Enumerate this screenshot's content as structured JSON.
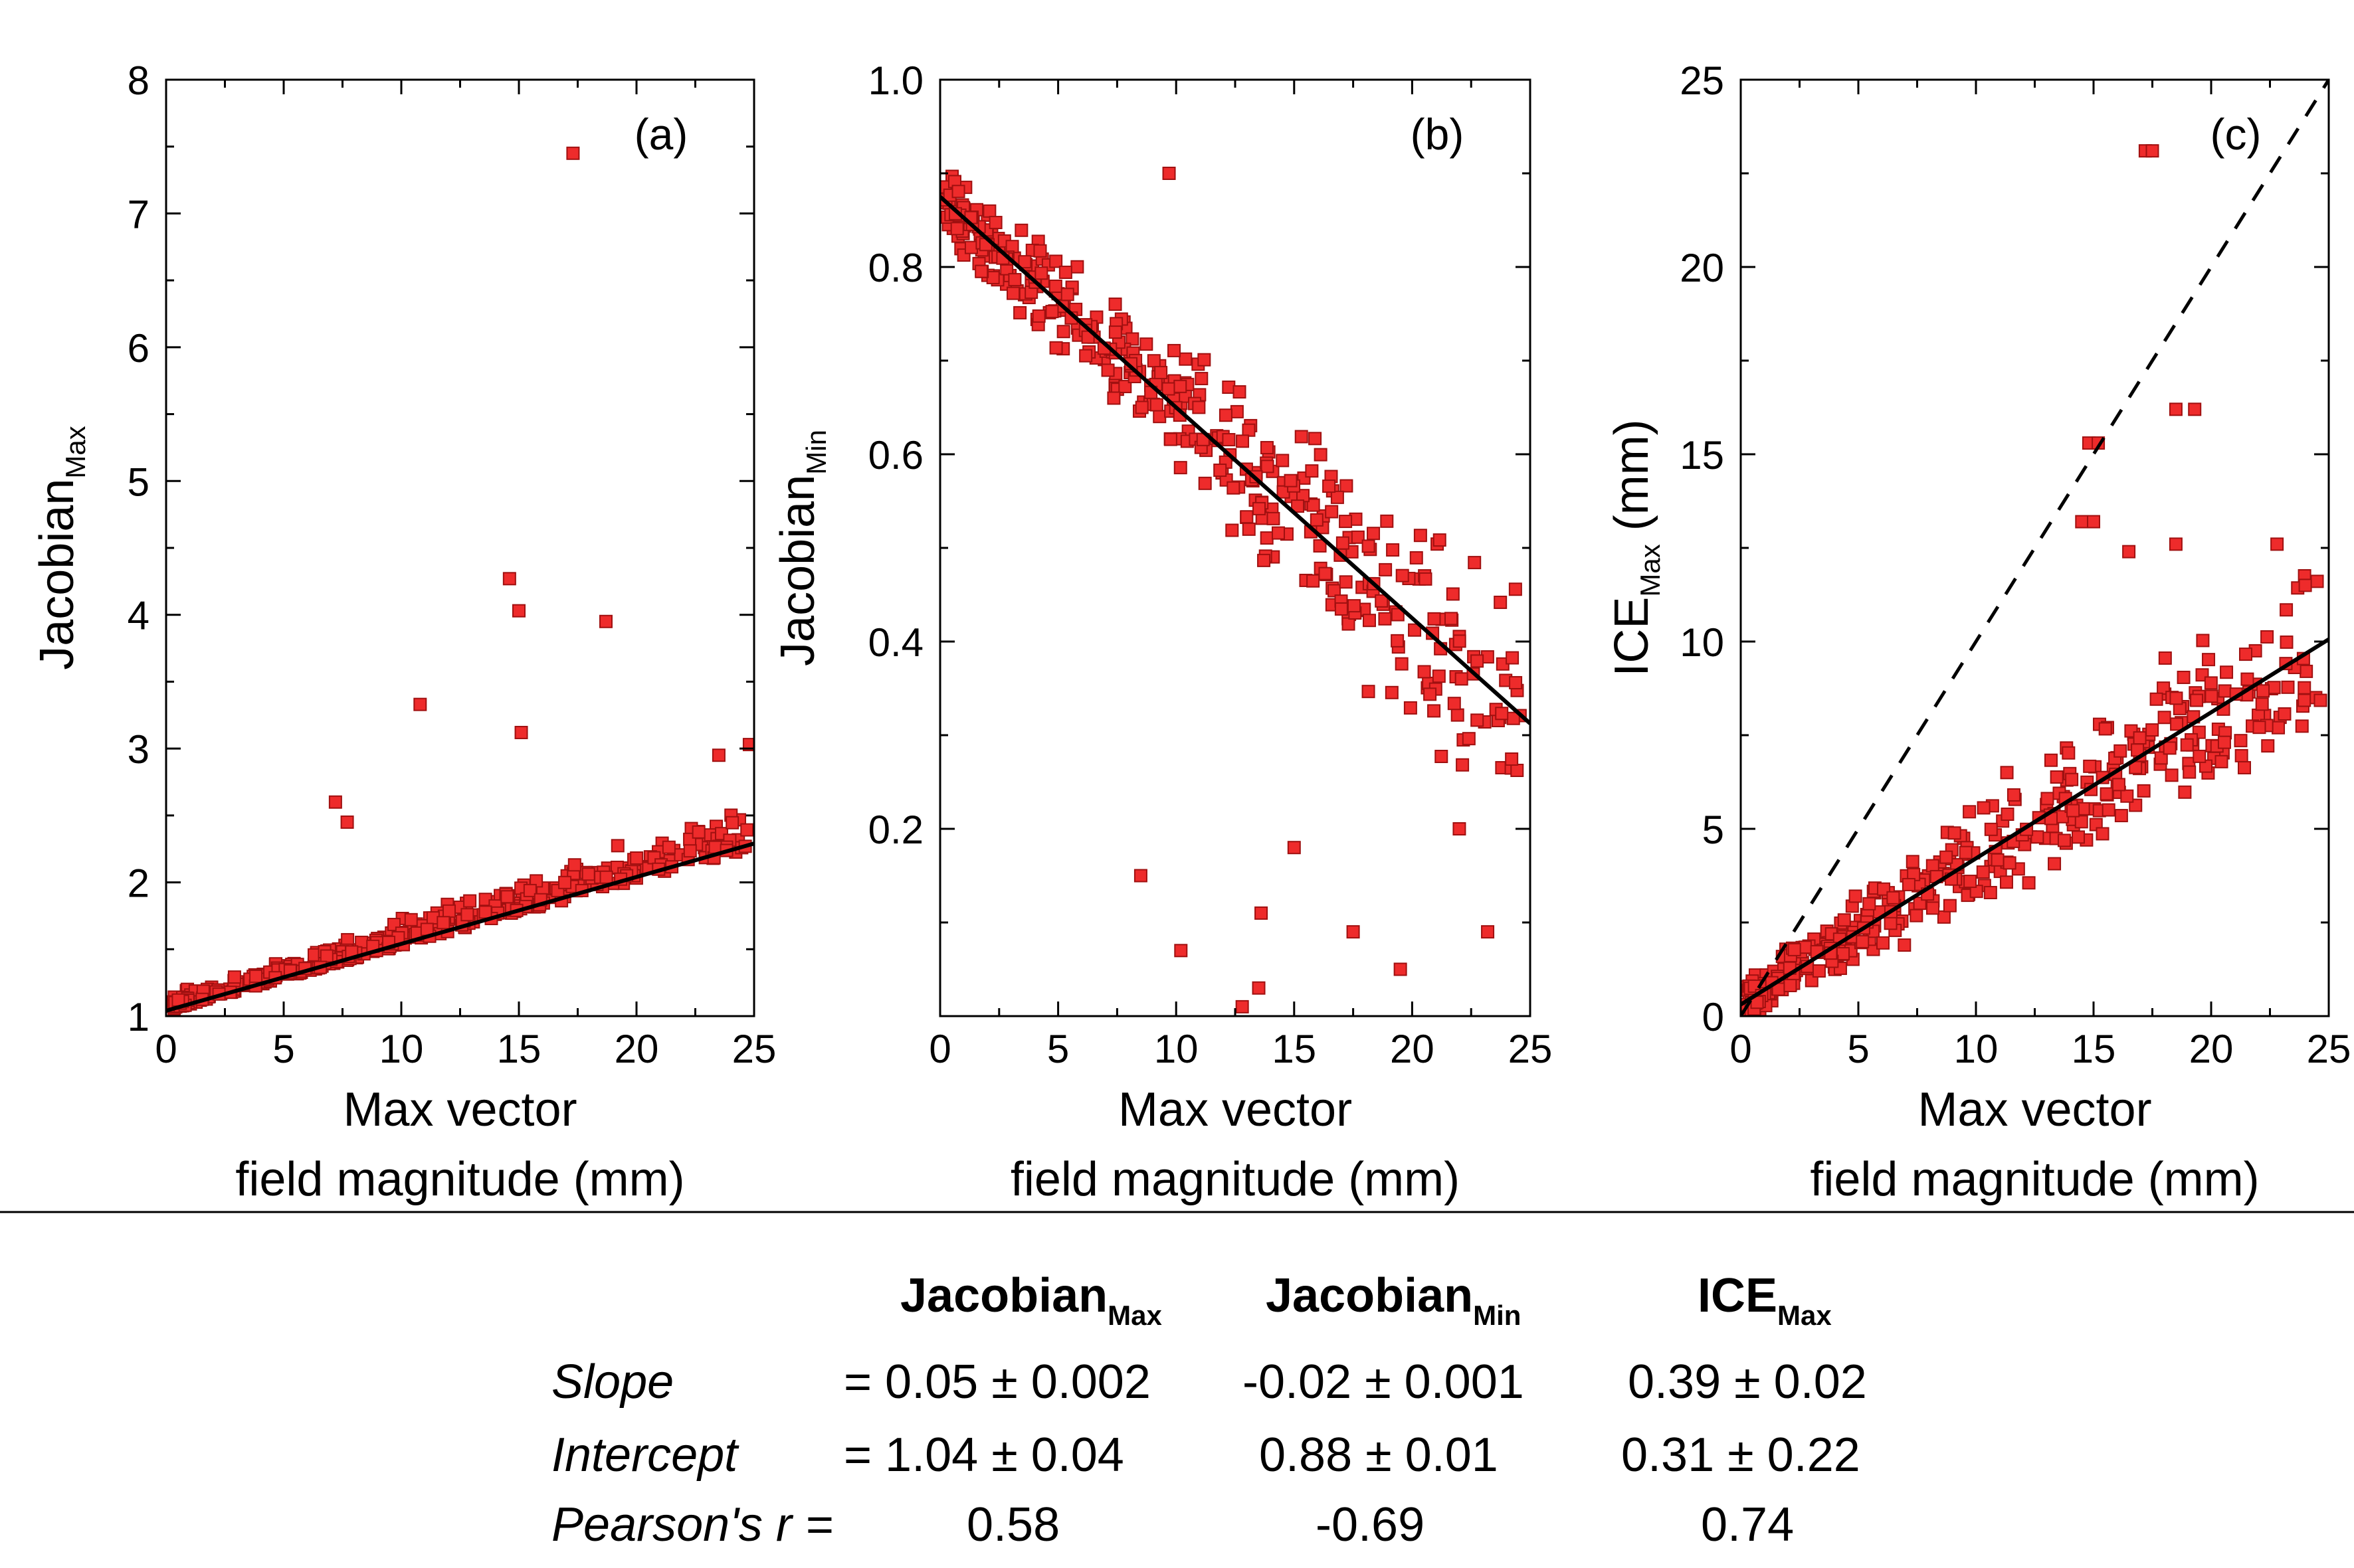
{
  "chart_data": [
    {
      "type": "scatter",
      "panel_label": "(a)",
      "ylabel_main": "Jacobian",
      "ylabel_sub": "Max",
      "ylabel_suffix": "",
      "xlabel_line1": "Max vector",
      "xlabel_line2": "field magnitude (mm)",
      "xlim": [
        0,
        25
      ],
      "ylim": [
        1,
        8
      ],
      "xticks": [
        0,
        5,
        10,
        15,
        20,
        25
      ],
      "yticks": [
        1,
        2,
        3,
        4,
        5,
        6,
        7,
        8
      ],
      "minor_y": 0.5,
      "fit": {
        "slope": 0.05,
        "intercept": 1.04
      },
      "reference_line": null,
      "points_sampled": {
        "seed": 11,
        "count": 420,
        "x_spread": "dense-low",
        "noise": 0.35,
        "outliers": [
          [
            17.3,
            7.45
          ],
          [
            14.6,
            4.27
          ],
          [
            15.0,
            4.03
          ],
          [
            18.7,
            3.95
          ],
          [
            10.8,
            3.33
          ],
          [
            15.1,
            3.12
          ],
          [
            24.8,
            3.03
          ],
          [
            23.5,
            2.95
          ],
          [
            7.2,
            2.6
          ],
          [
            7.7,
            2.45
          ]
        ]
      }
    },
    {
      "type": "scatter",
      "panel_label": "(b)",
      "ylabel_main": "Jacobian",
      "ylabel_sub": "Min",
      "ylabel_suffix": "",
      "xlabel_line1": "Max vector",
      "xlabel_line2": "field magnitude (mm)",
      "xlim": [
        0,
        25
      ],
      "ylim": [
        0,
        1.0
      ],
      "xticks": [
        0,
        5,
        10,
        15,
        20,
        25
      ],
      "yticks": [
        0.2,
        0.4,
        0.6,
        0.8,
        1.0
      ],
      "ytick_labels": [
        "0.2",
        "0.4",
        "0.6",
        "0.8",
        "1.0"
      ],
      "minor_y": 0.1,
      "fit": {
        "slope": -0.0225,
        "intercept": 0.875
      },
      "reference_line": null,
      "points_sampled": {
        "seed": 23,
        "count": 400,
        "x_spread": "dense-low",
        "noise": 0.09,
        "outliers": [
          [
            12.8,
            0.01
          ],
          [
            13.5,
            0.03
          ],
          [
            19.5,
            0.05
          ],
          [
            10.2,
            0.07
          ],
          [
            8.5,
            0.15
          ],
          [
            23.2,
            0.09
          ],
          [
            13.6,
            0.11
          ],
          [
            17.5,
            0.09
          ],
          [
            15.0,
            0.18
          ],
          [
            22.0,
            0.2
          ],
          [
            9.7,
            0.9
          ]
        ]
      }
    },
    {
      "type": "scatter",
      "panel_label": "(c)",
      "ylabel_main": "ICE",
      "ylabel_sub": "Max",
      "ylabel_suffix": " (mm)",
      "xlabel_line1": "Max vector",
      "xlabel_line2": "field magnitude (mm)",
      "xlim": [
        0,
        25
      ],
      "ylim": [
        0,
        25
      ],
      "xticks": [
        0,
        5,
        10,
        15,
        20,
        25
      ],
      "yticks": [
        0,
        5,
        10,
        15,
        20,
        25
      ],
      "minor_y": 2.5,
      "fit": {
        "slope": 0.39,
        "intercept": 0.31
      },
      "reference_line": {
        "slope": 1,
        "intercept": 0,
        "style": "dashed"
      },
      "points_sampled": {
        "seed": 37,
        "count": 400,
        "x_spread": "dense-low",
        "noise": 1.6,
        "outliers": [
          [
            17.2,
            23.1
          ],
          [
            17.5,
            23.1
          ],
          [
            14.8,
            15.3
          ],
          [
            15.2,
            15.3
          ],
          [
            18.5,
            16.2
          ],
          [
            19.3,
            16.2
          ],
          [
            14.5,
            13.2
          ],
          [
            15.0,
            13.2
          ],
          [
            18.5,
            12.6
          ],
          [
            16.5,
            12.4
          ],
          [
            22.8,
            12.6
          ],
          [
            24.0,
            11.5
          ]
        ]
      }
    }
  ],
  "table": {
    "columns": [
      {
        "main": "Jacobian",
        "sub": "Max"
      },
      {
        "main": "Jacobian",
        "sub": "Min"
      },
      {
        "main": "ICE",
        "sub": "Max"
      }
    ],
    "rows": [
      {
        "label": "Slope",
        "values": [
          "= 0.05 ± 0.002",
          "-0.02 ± 0.001",
          "0.39 ± 0.02"
        ]
      },
      {
        "label": "Intercept",
        "values": [
          "= 1.04 ± 0.04",
          "0.88 ± 0.01",
          "0.31 ± 0.22"
        ]
      },
      {
        "label": "Pearson's r =",
        "values": [
          "0.58",
          "-0.69",
          "0.74"
        ]
      }
    ]
  }
}
